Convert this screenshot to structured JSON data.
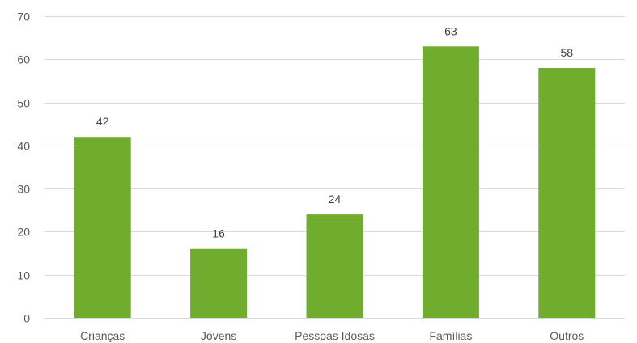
{
  "chart_data": {
    "type": "bar",
    "categories": [
      "Crianças",
      "Jovens",
      "Pessoas Idosas",
      "Famílias",
      "Outros"
    ],
    "values": [
      42,
      16,
      24,
      63,
      58
    ],
    "title": "",
    "xlabel": "",
    "ylabel": "",
    "ylim": [
      0,
      70
    ],
    "yticks": [
      0,
      10,
      20,
      30,
      40,
      50,
      60,
      70
    ],
    "grid": true,
    "legend": "none",
    "data_labels": true,
    "bar_color": "#70ad2f"
  }
}
